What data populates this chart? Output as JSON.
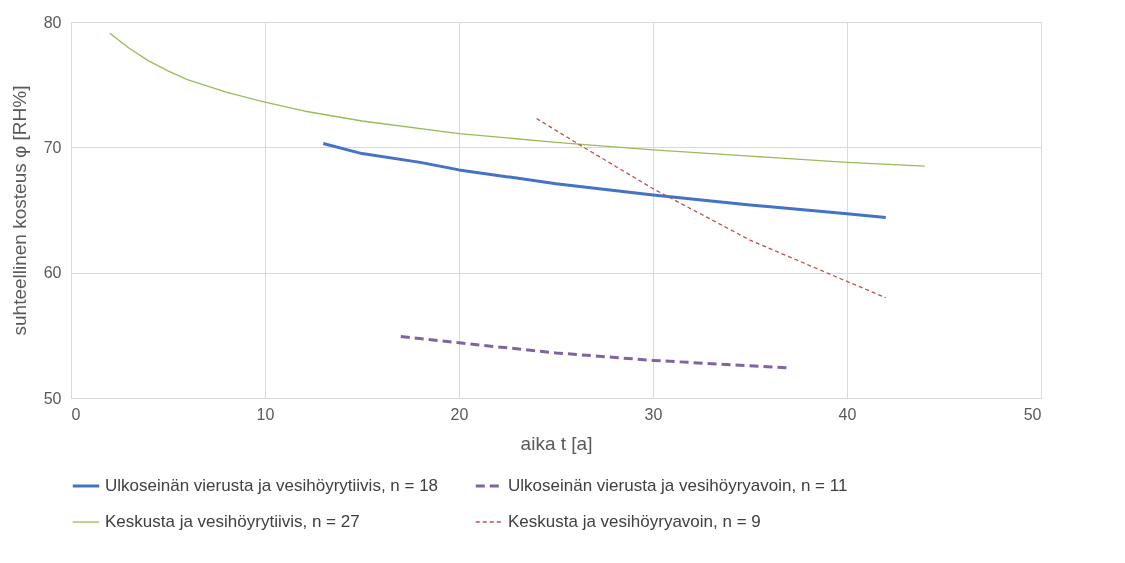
{
  "chart_data": {
    "type": "line",
    "xlabel": "aika t [a]",
    "ylabel": "suhteellinen kosteus φ [RH%]",
    "xlim": [
      0,
      50
    ],
    "xticks": [
      0,
      10,
      20,
      30,
      40,
      50
    ],
    "ylim": [
      50,
      80
    ],
    "yticks": [
      50,
      60,
      70,
      80
    ],
    "grid": true,
    "legend": "bottom",
    "marker": "none",
    "series": [
      {
        "name": "Ulkoseinän vierusta ja vesihöyrytiivis, n = 18",
        "color": "#4472c4",
        "line_style": "solid",
        "x": [
          13,
          15,
          18,
          20,
          25,
          30,
          35,
          40,
          42
        ],
        "values": [
          70.3,
          69.5,
          68.8,
          68.2,
          67.1,
          66.2,
          65.4,
          64.7,
          64.4
        ]
      },
      {
        "name": "Ulkoseinän vierusta ja vesihöyryavoin, n = 11",
        "color": "#8064a2",
        "line_style": "dashed",
        "x": [
          17,
          20,
          25,
          30,
          37
        ],
        "values": [
          54.9,
          54.4,
          53.6,
          53.0,
          52.4
        ]
      },
      {
        "name": "Keskusta ja vesihöyrytiivis, n = 27",
        "color": "#9bbb59",
        "line_style": "solid",
        "x": [
          2,
          3,
          4,
          5,
          6,
          8,
          10,
          12,
          15,
          20,
          25,
          30,
          35,
          40,
          44
        ],
        "values": [
          79.1,
          77.9,
          76.9,
          76.1,
          75.4,
          74.4,
          73.6,
          72.9,
          72.1,
          71.1,
          70.4,
          69.8,
          69.3,
          68.8,
          68.5
        ]
      },
      {
        "name": "Keskusta ja vesihöyryavoin, n = 9",
        "color": "#c0504d",
        "line_style": "dashed",
        "x": [
          24,
          26,
          30,
          35,
          40,
          42
        ],
        "values": [
          72.3,
          70.4,
          66.7,
          62.6,
          59.3,
          58.0
        ]
      }
    ]
  }
}
